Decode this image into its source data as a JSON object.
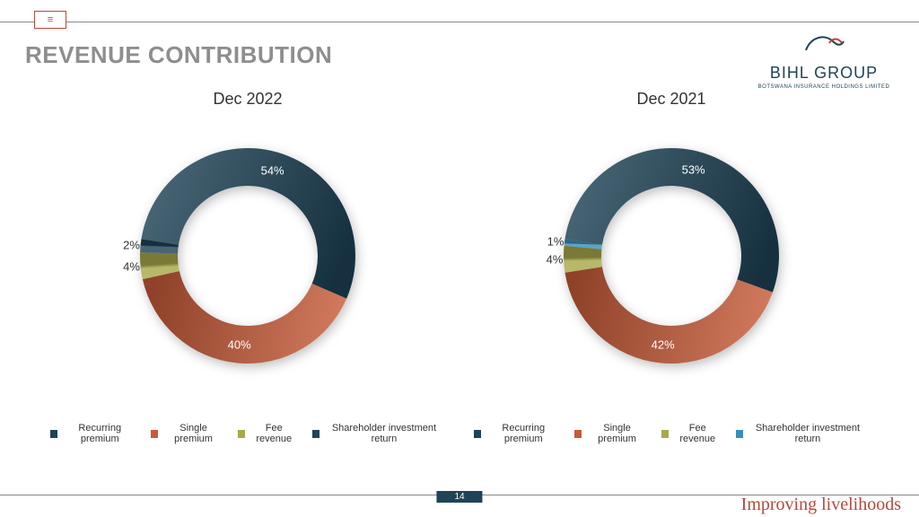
{
  "title": "REVENUE CONTRIBUTION",
  "page_number": "14",
  "tagline": "Improving livelihoods",
  "logo": {
    "name": "BIHL GROUP",
    "subtitle": "BOTSWANA INSURANCE HOLDINGS LIMITED"
  },
  "chart_style": {
    "type": "donut",
    "outer_radius": 120,
    "inner_radius": 78,
    "start_angle_deg": -81,
    "title_fontsize": 18,
    "label_fontsize": 13,
    "label_color": "#ffffff",
    "legend_fontsize": 11,
    "background": "#ffffff"
  },
  "charts": [
    {
      "title": "Dec 2022",
      "slices": [
        {
          "label": "Recurring premium",
          "value": 54,
          "display": "54%",
          "color": "#1f4357"
        },
        {
          "label": "Single premium",
          "value": 40,
          "display": "40%",
          "color": "#c75b39"
        },
        {
          "label": "Fee revenue",
          "value": 4,
          "display": "4%",
          "color": "#a9a84a"
        },
        {
          "label": "Shareholder investment return",
          "value": 2,
          "display": "2%",
          "color": "#1f4357"
        }
      ]
    },
    {
      "title": "Dec 2021",
      "slices": [
        {
          "label": "Recurring premium",
          "value": 53,
          "display": "53%",
          "color": "#1f4357"
        },
        {
          "label": "Single premium",
          "value": 42,
          "display": "42%",
          "color": "#c75b39"
        },
        {
          "label": "Fee revenue",
          "value": 4,
          "display": "4%",
          "color": "#a9a84a"
        },
        {
          "label": "Shareholder investment return",
          "value": 1,
          "display": "1%",
          "color": "#3a8fb7"
        }
      ]
    }
  ]
}
